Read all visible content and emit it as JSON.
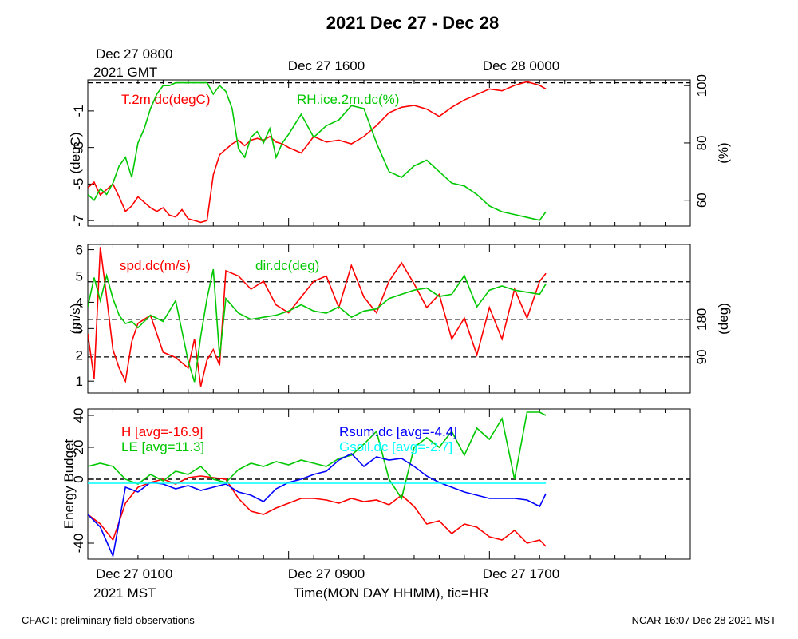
{
  "title": "2021 Dec 27 - Dec 28",
  "footer_left": "CFACT: preliminary field observations",
  "footer_right": "NCAR 16:07 Dec 28 2021 MST",
  "top_axis": {
    "first_label_line1": "Dec 27 0800",
    "first_label_line2": "2021 GMT",
    "labels": [
      "Dec 27 1600",
      "Dec 28 0000"
    ]
  },
  "bottom_axis": {
    "first_label_line1": "Dec 27 0100",
    "first_label_line2": "2021 MST",
    "labels": [
      "Dec 27 0900",
      "Dec 27 1700"
    ],
    "xlabel": "Time(MON DAY HHMM), tic=HR"
  },
  "colors": {
    "red": "#ff0000",
    "green": "#00c800",
    "blue": "#0000ff",
    "cyan": "#00ffff"
  },
  "chart_data": [
    {
      "type": "line",
      "xlabel": "Time(MON DAY HHMM), tic=HR",
      "x_range_hours_MST": [
        0,
        24
      ],
      "left_ylabel": "(degC)",
      "left_ylim": [
        -7.3,
        0.7
      ],
      "left_ticks": [
        "-1",
        "-3",
        "-5",
        "-7"
      ],
      "right_ylabel": "(%)",
      "right_ylim": [
        51,
        102
      ],
      "right_ticks": [
        "100",
        "80",
        "60"
      ],
      "ref_lines_right": [
        101
      ],
      "series": [
        {
          "name": "T.2m.dc(degC)",
          "axis": "left",
          "color": "red",
          "x": [
            0,
            0.25,
            0.5,
            0.75,
            1,
            1.25,
            1.5,
            1.75,
            2,
            2.25,
            2.5,
            2.75,
            3,
            3.25,
            3.5,
            3.75,
            4,
            4.25,
            4.5,
            4.75,
            5,
            5.25,
            5.5,
            5.75,
            6,
            6.25,
            6.5,
            6.75,
            7,
            7.25,
            7.5,
            7.75,
            8,
            8.5,
            9,
            9.5,
            10,
            10.5,
            11,
            11.5,
            12,
            12.5,
            13,
            13.5,
            14,
            14.5,
            15,
            15.5,
            16,
            16.5,
            17,
            17.5,
            18,
            18.25
          ],
          "y": [
            -5.2,
            -4.9,
            -5.6,
            -5.3,
            -5.0,
            -5.7,
            -6.5,
            -6.2,
            -5.7,
            -6.0,
            -6.3,
            -6.5,
            -6.3,
            -6.7,
            -6.8,
            -6.4,
            -6.9,
            -7.0,
            -7.1,
            -7.0,
            -4.5,
            -3.4,
            -3.1,
            -2.8,
            -2.6,
            -2.9,
            -2.6,
            -2.5,
            -2.6,
            -2.4,
            -2.7,
            -2.8,
            -3.0,
            -3.3,
            -2.4,
            -2.7,
            -2.6,
            -2.8,
            -2.4,
            -1.8,
            -1.1,
            -0.8,
            -0.7,
            -0.9,
            -1.3,
            -0.8,
            -0.4,
            -0.1,
            0.2,
            0.1,
            0.4,
            0.6,
            0.4,
            0.2
          ]
        },
        {
          "name": "RH.ice.2m.dc(%)",
          "axis": "right",
          "color": "green",
          "x": [
            0,
            0.25,
            0.5,
            0.75,
            1,
            1.25,
            1.5,
            1.75,
            2,
            2.25,
            2.5,
            2.75,
            3,
            3.25,
            3.5,
            3.75,
            4,
            4.25,
            4.5,
            4.75,
            5,
            5.25,
            5.5,
            5.75,
            6,
            6.25,
            6.5,
            6.75,
            7,
            7.25,
            7.5,
            7.75,
            8,
            8.5,
            9,
            9.5,
            10,
            10.5,
            11,
            11.5,
            12,
            12.5,
            13,
            13.5,
            14,
            14.5,
            15,
            15.5,
            16,
            16.5,
            17,
            17.5,
            18,
            18.25
          ],
          "y": [
            62,
            60,
            64,
            62,
            66,
            72,
            75,
            68,
            80,
            85,
            92,
            97,
            100,
            100,
            101,
            101,
            101,
            101,
            101,
            101,
            97,
            100,
            98,
            92,
            78,
            75,
            82,
            84,
            80,
            85,
            75,
            80,
            83,
            90,
            82,
            86,
            88,
            93,
            92,
            80,
            70,
            68,
            72,
            74,
            70,
            66,
            65,
            62,
            58,
            56,
            55,
            54,
            53,
            56
          ]
        }
      ]
    },
    {
      "type": "line",
      "xlabel": "Time(MON DAY HHMM), tic=HR",
      "x_range_hours_MST": [
        0,
        24
      ],
      "left_ylabel": "(m/s)",
      "left_ylim": [
        0.55,
        6.2
      ],
      "left_ticks": [
        "1",
        "2",
        "3",
        "4",
        "5",
        "6"
      ],
      "right_ylabel": "(deg)",
      "right_ticks": [
        "90",
        "180"
      ],
      "ref_lines_right": [
        90,
        180,
        270
      ],
      "series": [
        {
          "name": "spd.dc(m/s)",
          "axis": "left",
          "color": "red",
          "x": [
            0,
            0.25,
            0.5,
            0.75,
            1,
            1.25,
            1.5,
            1.75,
            2,
            2.5,
            3,
            3.5,
            4,
            4.25,
            4.5,
            4.75,
            5,
            5.25,
            5.5,
            6,
            6.5,
            7,
            7.5,
            8,
            8.5,
            9,
            9.5,
            10,
            10.5,
            11,
            11.5,
            12,
            12.5,
            13,
            13.5,
            14,
            14.5,
            15,
            15.5,
            16,
            16.5,
            17,
            17.5,
            18,
            18.25
          ],
          "y": [
            2.8,
            1.1,
            6.1,
            4.2,
            2.2,
            1.5,
            1.0,
            2.5,
            3.2,
            3.5,
            2.1,
            1.9,
            1.5,
            2.6,
            0.8,
            1.8,
            2.2,
            1.6,
            5.2,
            5.0,
            4.5,
            4.8,
            3.9,
            3.6,
            4.2,
            4.8,
            5.0,
            3.8,
            5.4,
            4.2,
            3.6,
            4.8,
            5.5,
            4.7,
            3.8,
            4.3,
            2.6,
            3.4,
            2.0,
            3.8,
            2.6,
            4.5,
            3.4,
            4.8,
            5.1
          ]
        },
        {
          "name": "dir.dc(deg)",
          "axis": "right",
          "color": "green",
          "x": [
            0,
            0.25,
            0.5,
            0.75,
            1,
            1.25,
            1.5,
            1.75,
            2,
            2.5,
            3,
            3.5,
            4,
            4.25,
            4.5,
            4.75,
            5,
            5.25,
            5.5,
            6,
            6.5,
            7,
            7.5,
            8,
            8.5,
            9,
            9.5,
            10,
            10.5,
            11,
            11.5,
            12,
            12.5,
            13,
            13.5,
            14,
            14.5,
            15,
            15.5,
            16,
            16.5,
            17,
            17.5,
            18,
            18.25
          ],
          "y": [
            210,
            280,
            225,
            285,
            230,
            190,
            170,
            175,
            160,
            190,
            175,
            225,
            80,
            30,
            140,
            230,
            300,
            90,
            230,
            195,
            180,
            185,
            190,
            200,
            215,
            200,
            195,
            210,
            185,
            200,
            205,
            230,
            240,
            250,
            255,
            235,
            240,
            285,
            210,
            250,
            260,
            250,
            245,
            240,
            265
          ]
        }
      ]
    },
    {
      "type": "line",
      "xlabel": "Time(MON DAY HHMM), tic=HR",
      "x_range_hours_MST": [
        0,
        24
      ],
      "left_ylabel": "Energy Budget",
      "left_ylim": [
        -50,
        44
      ],
      "left_ticks": [
        "40",
        "20",
        "0",
        "-40"
      ],
      "ref_lines_left": [
        0
      ],
      "series": [
        {
          "name": "H [avg=-16.9]",
          "color": "red",
          "x": [
            0,
            0.5,
            1,
            1.5,
            2,
            2.5,
            3,
            3.5,
            4,
            4.5,
            5,
            5.5,
            6,
            6.5,
            7,
            7.5,
            8,
            8.5,
            9,
            9.5,
            10,
            10.5,
            11,
            11.5,
            12,
            12.5,
            13,
            13.5,
            14,
            14.5,
            15,
            15.5,
            16,
            16.5,
            17,
            17.5,
            18,
            18.25
          ],
          "y": [
            -22,
            -28,
            -38,
            -15,
            -5,
            -2,
            0,
            -3,
            1,
            2,
            1,
            0,
            -12,
            -20,
            -22,
            -18,
            -15,
            -12,
            -12,
            -13,
            -15,
            -12,
            -14,
            -13,
            -16,
            -10,
            -17,
            -28,
            -26,
            -34,
            -28,
            -30,
            -36,
            -38,
            -32,
            -40,
            -38,
            -42
          ]
        },
        {
          "name": "LE [avg=11.3]",
          "color": "green",
          "x": [
            0,
            0.5,
            1,
            1.5,
            2,
            2.5,
            3,
            3.5,
            4,
            4.5,
            5,
            5.5,
            6,
            6.5,
            7,
            7.5,
            8,
            8.5,
            9,
            9.5,
            10,
            10.5,
            11,
            11.5,
            12,
            12.5,
            13,
            13.5,
            14,
            14.5,
            15,
            15.5,
            16,
            16.5,
            17,
            17.5,
            18,
            18.25
          ],
          "y": [
            8,
            10,
            8,
            0,
            -3,
            3,
            -1,
            5,
            3,
            8,
            0,
            -2,
            6,
            10,
            8,
            11,
            9,
            12,
            10,
            8,
            13,
            15,
            22,
            30,
            0,
            -12,
            20,
            26,
            20,
            30,
            15,
            32,
            25,
            38,
            0,
            42,
            42,
            40
          ]
        },
        {
          "name": "Rsum.dc [avg=-4.4]",
          "color": "blue",
          "x": [
            0,
            0.5,
            1,
            1.5,
            2,
            2.5,
            3,
            3.5,
            4,
            4.5,
            5,
            5.5,
            6,
            6.5,
            7,
            7.5,
            8,
            8.5,
            9,
            9.5,
            10,
            10.5,
            11,
            11.5,
            12,
            12.5,
            13,
            13.5,
            14,
            14.5,
            15,
            15.5,
            16,
            16.5,
            17,
            17.5,
            18,
            18.25
          ],
          "y": [
            -22,
            -30,
            -48,
            -5,
            -8,
            -2,
            -3,
            -6,
            -4,
            -7,
            -5,
            -3,
            -8,
            -10,
            -14,
            -6,
            -2,
            0,
            3,
            5,
            12,
            16,
            8,
            14,
            12,
            13,
            8,
            2,
            -2,
            -5,
            -8,
            -10,
            -12,
            -12,
            -12,
            -13,
            -17,
            -9
          ]
        },
        {
          "name": "Gsoil.dc [avg=-2.7]",
          "color": "cyan",
          "x": [
            0,
            18.25
          ],
          "y": [
            -2.5,
            -2.5
          ]
        }
      ]
    }
  ]
}
